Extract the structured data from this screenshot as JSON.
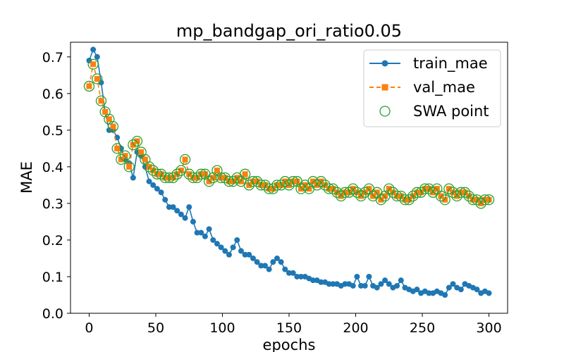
{
  "chart_data": {
    "type": "line",
    "title": "mp_bandgap_ori_ratio0.05",
    "xlabel": "epochs",
    "ylabel": "MAE",
    "xlim": [
      -14,
      314
    ],
    "ylim": [
      0.0,
      0.74
    ],
    "xticks": [
      0,
      50,
      100,
      150,
      200,
      250,
      300
    ],
    "yticks": [
      0.0,
      0.1,
      0.2,
      0.3,
      0.4,
      0.5,
      0.6,
      0.7
    ],
    "grid": false,
    "legend_position": "top-right",
    "series": [
      {
        "name": "train_mae",
        "color": "#1f77b4",
        "marker": "circle",
        "linestyle": "solid",
        "x": [
          0,
          3,
          6,
          9,
          12,
          15,
          18,
          21,
          24,
          27,
          30,
          33,
          36,
          39,
          42,
          45,
          48,
          51,
          54,
          57,
          60,
          63,
          66,
          69,
          72,
          75,
          78,
          81,
          84,
          87,
          90,
          93,
          96,
          99,
          102,
          105,
          108,
          111,
          114,
          117,
          120,
          123,
          126,
          129,
          132,
          135,
          138,
          141,
          144,
          147,
          150,
          153,
          156,
          159,
          162,
          165,
          168,
          171,
          174,
          177,
          180,
          183,
          186,
          189,
          192,
          195,
          198,
          201,
          204,
          207,
          210,
          213,
          216,
          219,
          222,
          225,
          228,
          231,
          234,
          237,
          240,
          243,
          246,
          249,
          252,
          255,
          258,
          261,
          264,
          267,
          270,
          273,
          276,
          279,
          282,
          285,
          288,
          291,
          294,
          297,
          300
        ],
        "y": [
          0.69,
          0.72,
          0.7,
          0.63,
          0.55,
          0.5,
          0.5,
          0.48,
          0.45,
          0.42,
          0.41,
          0.37,
          0.44,
          0.43,
          0.4,
          0.36,
          0.35,
          0.34,
          0.33,
          0.31,
          0.29,
          0.29,
          0.28,
          0.27,
          0.26,
          0.29,
          0.25,
          0.22,
          0.22,
          0.21,
          0.23,
          0.2,
          0.19,
          0.18,
          0.17,
          0.16,
          0.18,
          0.2,
          0.17,
          0.16,
          0.16,
          0.15,
          0.14,
          0.13,
          0.13,
          0.12,
          0.14,
          0.15,
          0.14,
          0.12,
          0.11,
          0.11,
          0.1,
          0.1,
          0.1,
          0.095,
          0.09,
          0.09,
          0.085,
          0.085,
          0.08,
          0.08,
          0.08,
          0.075,
          0.08,
          0.08,
          0.075,
          0.1,
          0.075,
          0.075,
          0.1,
          0.075,
          0.07,
          0.08,
          0.09,
          0.08,
          0.07,
          0.075,
          0.09,
          0.07,
          0.065,
          0.06,
          0.065,
          0.055,
          0.06,
          0.055,
          0.055,
          0.06,
          0.055,
          0.05,
          0.07,
          0.08,
          0.07,
          0.065,
          0.08,
          0.075,
          0.07,
          0.065,
          0.055,
          0.06,
          0.055
        ]
      },
      {
        "name": "val_mae",
        "color": "#ff7f0e",
        "marker": "square",
        "linestyle": "dashed",
        "x": [
          0,
          3,
          6,
          9,
          12,
          15,
          18,
          21,
          24,
          27,
          30,
          33,
          36,
          39,
          42,
          45,
          48,
          51,
          54,
          57,
          60,
          63,
          66,
          69,
          72,
          75,
          78,
          81,
          84,
          87,
          90,
          93,
          96,
          99,
          102,
          105,
          108,
          111,
          114,
          117,
          120,
          123,
          126,
          129,
          132,
          135,
          138,
          141,
          144,
          147,
          150,
          153,
          156,
          159,
          162,
          165,
          168,
          171,
          174,
          177,
          180,
          183,
          186,
          189,
          192,
          195,
          198,
          201,
          204,
          207,
          210,
          213,
          216,
          219,
          222,
          225,
          228,
          231,
          234,
          237,
          240,
          243,
          246,
          249,
          252,
          255,
          258,
          261,
          264,
          267,
          270,
          273,
          276,
          279,
          282,
          285,
          288,
          291,
          294,
          297,
          300
        ],
        "y": [
          0.62,
          0.68,
          0.64,
          0.58,
          0.55,
          0.53,
          0.51,
          0.45,
          0.42,
          0.43,
          0.4,
          0.46,
          0.47,
          0.44,
          0.42,
          0.4,
          0.39,
          0.38,
          0.38,
          0.37,
          0.37,
          0.37,
          0.38,
          0.39,
          0.42,
          0.38,
          0.37,
          0.37,
          0.38,
          0.38,
          0.36,
          0.37,
          0.39,
          0.37,
          0.37,
          0.36,
          0.36,
          0.37,
          0.36,
          0.38,
          0.35,
          0.36,
          0.36,
          0.35,
          0.35,
          0.34,
          0.34,
          0.35,
          0.35,
          0.36,
          0.35,
          0.36,
          0.36,
          0.34,
          0.35,
          0.34,
          0.36,
          0.35,
          0.36,
          0.35,
          0.34,
          0.34,
          0.33,
          0.32,
          0.33,
          0.33,
          0.34,
          0.33,
          0.32,
          0.33,
          0.34,
          0.32,
          0.33,
          0.31,
          0.32,
          0.34,
          0.33,
          0.32,
          0.32,
          0.31,
          0.31,
          0.32,
          0.33,
          0.33,
          0.34,
          0.34,
          0.33,
          0.34,
          0.32,
          0.31,
          0.34,
          0.33,
          0.32,
          0.33,
          0.33,
          0.32,
          0.31,
          0.31,
          0.3,
          0.31,
          0.31
        ]
      },
      {
        "name": "SWA point",
        "color": "#2ca02c",
        "marker": "hollow-circle",
        "linestyle": "none",
        "same_points_as": "val_mae"
      }
    ]
  }
}
